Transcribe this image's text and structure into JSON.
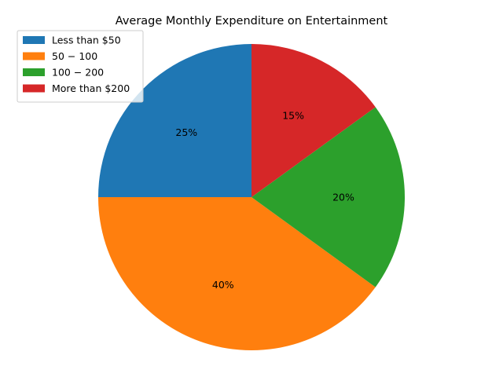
{
  "chart_data": {
    "type": "pie",
    "title": "Average Monthly Expenditure on Entertainment",
    "categories": [
      "Less than $50",
      "$50-$100",
      "$100-$200",
      "More than $200"
    ],
    "legend_labels": [
      "Less than $50",
      "50 − 100",
      "100 − 200",
      "More than $200"
    ],
    "values": [
      25,
      40,
      20,
      15
    ],
    "value_labels": [
      "25%",
      "40%",
      "20%",
      "15%"
    ],
    "colors": [
      "#1f77b4",
      "#ff7f0e",
      "#2ca02c",
      "#d62728"
    ],
    "start_angle_deg": 90,
    "direction": "counterclockwise",
    "legend_position": "upper-left"
  }
}
